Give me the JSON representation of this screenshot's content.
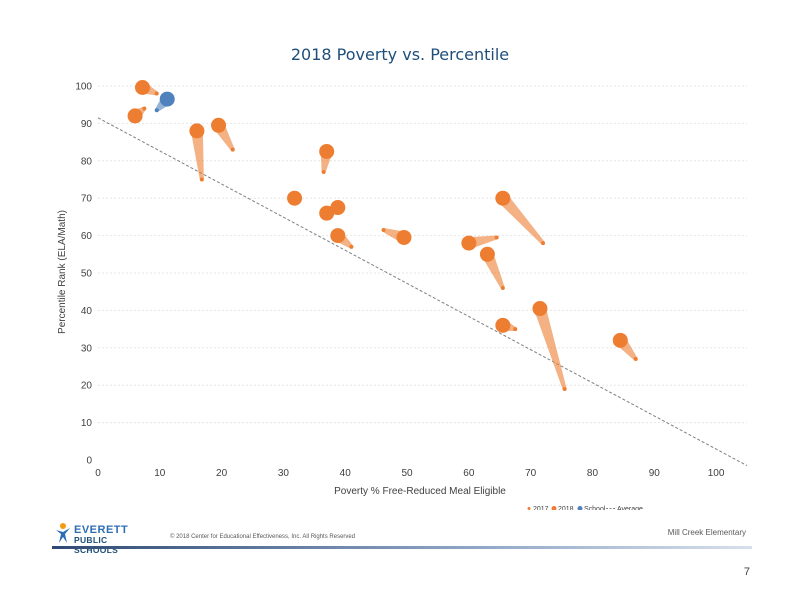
{
  "chart_data": {
    "type": "scatter",
    "title": "2018 Poverty vs. Percentile",
    "xlabel": "Poverty % Free-Reduced Meal Eligible",
    "ylabel": "Percentile Rank (ELA/Math)",
    "xlim": [
      0,
      105
    ],
    "ylim": [
      0,
      100
    ],
    "x_ticks": [
      0,
      10,
      20,
      30,
      40,
      50,
      60,
      70,
      80,
      90,
      100
    ],
    "y_ticks": [
      0,
      10,
      20,
      30,
      40,
      50,
      60,
      70,
      80,
      90,
      100
    ],
    "grid": "horizontal",
    "legend_placement": "bottom-right",
    "legend": [
      "2017",
      "2018",
      "School",
      "Average"
    ],
    "series_colors": {
      "2017": "#ed7d31",
      "2018": "#ed7d31",
      "School": "#4f81bd",
      "Average": "#7f7f7f"
    },
    "average_line": {
      "x": [
        0,
        105
      ],
      "y": [
        91.5,
        -1.5
      ]
    },
    "schools": [
      {
        "x2017": 9.5,
        "y2017": 98.0,
        "x2018": 7.2,
        "y2018": 99.6,
        "highlight": false
      },
      {
        "x2017": 7.5,
        "y2017": 94.0,
        "x2018": 6.0,
        "y2018": 92.0,
        "highlight": false
      },
      {
        "x2017": 9.5,
        "y2017": 93.5,
        "x2018": 11.2,
        "y2018": 96.5,
        "highlight": true
      },
      {
        "x2017": 16.8,
        "y2017": 75.0,
        "x2018": 16.0,
        "y2018": 88.0,
        "highlight": false
      },
      {
        "x2017": 21.8,
        "y2017": 83.0,
        "x2018": 19.5,
        "y2018": 89.5,
        "highlight": false
      },
      {
        "x2017": 31.2,
        "y2017": 70.0,
        "x2018": 31.8,
        "y2018": 70.0,
        "highlight": false
      },
      {
        "x2017": 36.5,
        "y2017": 77.0,
        "x2018": 37.0,
        "y2018": 82.5,
        "highlight": false
      },
      {
        "x2017": 39.5,
        "y2017": 68.0,
        "x2018": 37.0,
        "y2018": 66.0,
        "highlight": false
      },
      {
        "x2017": 38.5,
        "y2017": 67.0,
        "x2018": 38.8,
        "y2018": 67.5,
        "highlight": false
      },
      {
        "x2017": 41.0,
        "y2017": 57.0,
        "x2018": 38.8,
        "y2018": 60.0,
        "highlight": false
      },
      {
        "x2017": 46.2,
        "y2017": 61.5,
        "x2018": 49.5,
        "y2018": 59.5,
        "highlight": false
      },
      {
        "x2017": 64.5,
        "y2017": 59.5,
        "x2018": 60.0,
        "y2018": 58.0,
        "highlight": false
      },
      {
        "x2017": 72.0,
        "y2017": 58.0,
        "x2018": 65.5,
        "y2018": 70.0,
        "highlight": false
      },
      {
        "x2017": 65.5,
        "y2017": 46.0,
        "x2018": 63.0,
        "y2018": 55.0,
        "highlight": false
      },
      {
        "x2017": 67.5,
        "y2017": 35.0,
        "x2018": 65.5,
        "y2018": 36.0,
        "highlight": false
      },
      {
        "x2017": 75.5,
        "y2017": 19.0,
        "x2018": 71.5,
        "y2018": 40.5,
        "highlight": false
      },
      {
        "x2017": 87.0,
        "y2017": 27.0,
        "x2018": 84.5,
        "y2018": 32.0,
        "highlight": false
      }
    ]
  },
  "footer": {
    "logo_line1": "EVERETT",
    "logo_line2": "PUBLIC SCHOOLS",
    "copyright": "© 2018 Center for Educational Effectiveness, Inc. All Rights Reserved",
    "school_name": "Mill Creek Elementary",
    "page_number": "7"
  }
}
